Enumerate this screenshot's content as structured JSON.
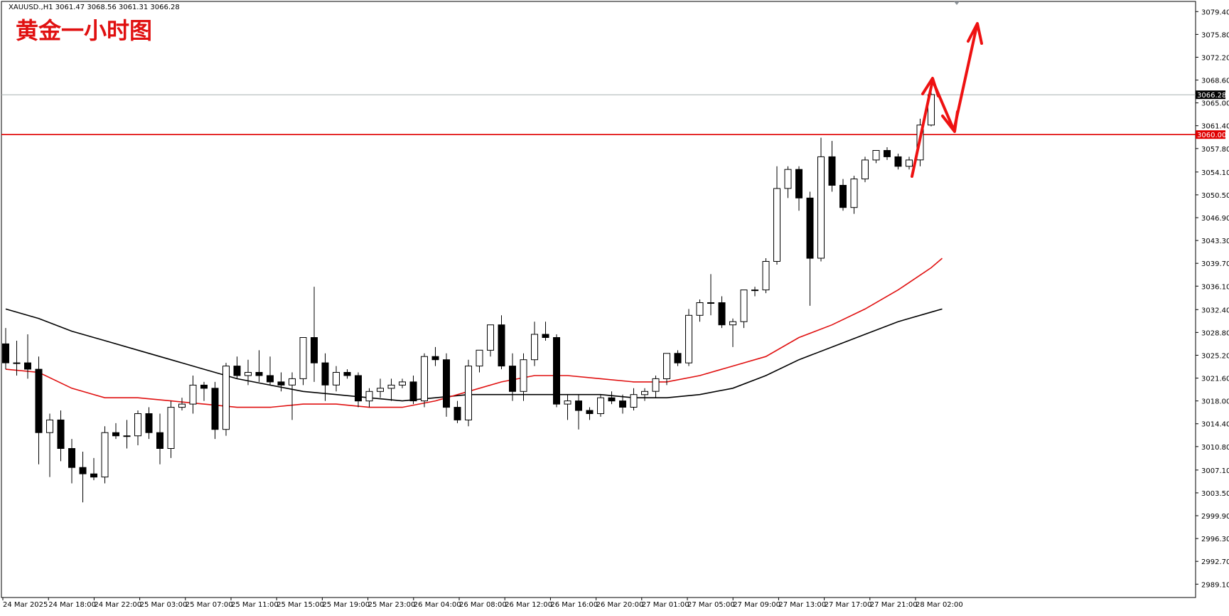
{
  "header": {
    "text": "XAUUSD.,H1  3061.47 3068.56 3061.31 3066.28"
  },
  "title": "黄金一小时图",
  "price_tags": {
    "current": "3066.28",
    "level": "3060.00"
  },
  "colors": {
    "background": "#ffffff",
    "frame": "#000000",
    "bull_body": "#ffffff",
    "bear_body": "#000000",
    "ma_fast": "#e01010",
    "ma_slow": "#000000",
    "level_line": "#e00000",
    "current_line": "#a8b0b0",
    "arrow": "#ee1111",
    "title": "#e01010"
  },
  "chart_data": {
    "type": "candlestick",
    "symbol": "XAUUSD.",
    "timeframe": "H1",
    "ylim": [
      2987.0,
      3081.0
    ],
    "y_ticks": [
      "3079.40",
      "3075.80",
      "3072.20",
      "3068.60",
      "3065.00",
      "3061.40",
      "3057.80",
      "3054.10",
      "3050.50",
      "3046.90",
      "3043.30",
      "3039.70",
      "3036.10",
      "3032.40",
      "3028.80",
      "3025.20",
      "3021.60",
      "3018.00",
      "3014.40",
      "3010.80",
      "3007.10",
      "3003.50",
      "2999.90",
      "2996.30",
      "2992.70",
      "2989.10"
    ],
    "x_labels": [
      "24 Mar 2025",
      "24 Mar 18:00",
      "24 Mar 22:00",
      "25 Mar 03:00",
      "25 Mar 07:00",
      "25 Mar 11:00",
      "25 Mar 15:00",
      "25 Mar 19:00",
      "25 Mar 23:00",
      "26 Mar 04:00",
      "26 Mar 08:00",
      "26 Mar 12:00",
      "26 Mar 16:00",
      "26 Mar 20:00",
      "27 Mar 01:00",
      "27 Mar 05:00",
      "27 Mar 09:00",
      "27 Mar 13:00",
      "27 Mar 17:00",
      "27 Mar 21:00",
      "28 Mar 02:00"
    ],
    "candles": [
      [
        3027.0,
        3029.5,
        3023.0,
        3024.0
      ],
      [
        3024.0,
        3027.5,
        3022.0,
        3024.0
      ],
      [
        3024.0,
        3028.5,
        3021.5,
        3023.0
      ],
      [
        3023.0,
        3025.0,
        3008.0,
        3013.0
      ],
      [
        3013.0,
        3016.0,
        3006.0,
        3015.0
      ],
      [
        3015.0,
        3016.5,
        3008.5,
        3010.5
      ],
      [
        3010.5,
        3012.0,
        3005.0,
        3007.5
      ],
      [
        3007.5,
        3010.0,
        3002.0,
        3006.5
      ],
      [
        3006.5,
        3009.0,
        3005.5,
        3006.0
      ],
      [
        3006.0,
        3014.0,
        3005.0,
        3013.0
      ],
      [
        3013.0,
        3014.5,
        3012.0,
        3012.5
      ],
      [
        3012.5,
        3015.0,
        3010.5,
        3012.5
      ],
      [
        3012.5,
        3016.5,
        3011.0,
        3016.0
      ],
      [
        3016.0,
        3017.0,
        3012.0,
        3013.0
      ],
      [
        3013.0,
        3016.0,
        3008.0,
        3010.5
      ],
      [
        3010.5,
        3018.0,
        3009.0,
        3017.0
      ],
      [
        3017.0,
        3018.5,
        3016.5,
        3017.5
      ],
      [
        3017.5,
        3022.0,
        3016.0,
        3020.5
      ],
      [
        3020.5,
        3021.0,
        3018.0,
        3020.0
      ],
      [
        3020.0,
        3021.0,
        3012.0,
        3013.5
      ],
      [
        3013.5,
        3024.0,
        3012.5,
        3023.5
      ],
      [
        3023.5,
        3025.0,
        3021.5,
        3022.0
      ],
      [
        3022.0,
        3024.5,
        3020.5,
        3022.5
      ],
      [
        3022.5,
        3026.0,
        3021.0,
        3022.0
      ],
      [
        3022.0,
        3025.0,
        3020.5,
        3021.0
      ],
      [
        3021.0,
        3022.5,
        3019.5,
        3020.5
      ],
      [
        3020.5,
        3022.5,
        3015.0,
        3021.5
      ],
      [
        3021.5,
        3028.0,
        3020.5,
        3028.0
      ],
      [
        3028.0,
        3036.0,
        3021.0,
        3024.0
      ],
      [
        3024.0,
        3025.5,
        3018.0,
        3020.5
      ],
      [
        3020.5,
        3023.5,
        3019.5,
        3022.5
      ],
      [
        3022.5,
        3023.0,
        3021.5,
        3022.0
      ],
      [
        3022.0,
        3022.5,
        3017.0,
        3018.0
      ],
      [
        3018.0,
        3020.0,
        3017.0,
        3019.5
      ],
      [
        3019.5,
        3021.5,
        3018.5,
        3020.0
      ],
      [
        3020.0,
        3021.5,
        3018.0,
        3020.5
      ],
      [
        3020.5,
        3021.5,
        3020.0,
        3021.0
      ],
      [
        3021.0,
        3022.0,
        3017.5,
        3018.0
      ],
      [
        3018.0,
        3025.5,
        3017.0,
        3025.0
      ],
      [
        3025.0,
        3026.5,
        3023.5,
        3024.5
      ],
      [
        3024.5,
        3025.5,
        3015.5,
        3017.0
      ],
      [
        3017.0,
        3018.0,
        3014.5,
        3015.0
      ],
      [
        3015.0,
        3024.5,
        3014.0,
        3023.5
      ],
      [
        3023.5,
        3026.0,
        3022.5,
        3026.0
      ],
      [
        3026.0,
        3030.0,
        3025.0,
        3030.0
      ],
      [
        3030.0,
        3031.5,
        3023.0,
        3023.5
      ],
      [
        3023.5,
        3025.5,
        3018.0,
        3019.5
      ],
      [
        3019.5,
        3025.5,
        3018.0,
        3024.5
      ],
      [
        3024.5,
        3030.5,
        3023.5,
        3028.5
      ],
      [
        3028.5,
        3030.5,
        3027.5,
        3028.0
      ],
      [
        3028.0,
        3028.5,
        3017.0,
        3017.5
      ],
      [
        3017.5,
        3019.0,
        3015.0,
        3018.0
      ],
      [
        3018.0,
        3019.0,
        3013.5,
        3016.5
      ],
      [
        3016.5,
        3017.0,
        3015.0,
        3016.0
      ],
      [
        3016.0,
        3019.0,
        3015.5,
        3018.5
      ],
      [
        3018.5,
        3019.5,
        3017.5,
        3018.0
      ],
      [
        3018.0,
        3019.0,
        3016.0,
        3017.0
      ],
      [
        3017.0,
        3020.0,
        3016.5,
        3019.0
      ],
      [
        3019.0,
        3020.0,
        3018.0,
        3019.5
      ],
      [
        3019.5,
        3022.0,
        3018.5,
        3021.5
      ],
      [
        3021.5,
        3025.5,
        3020.5,
        3025.5
      ],
      [
        3025.5,
        3026.0,
        3023.5,
        3024.0
      ],
      [
        3024.0,
        3032.5,
        3023.5,
        3031.5
      ],
      [
        3031.5,
        3034.0,
        3030.5,
        3033.5
      ],
      [
        3033.5,
        3038.0,
        3031.5,
        3033.5
      ],
      [
        3033.5,
        3034.5,
        3029.5,
        3030.0
      ],
      [
        3030.0,
        3031.0,
        3026.5,
        3030.5
      ],
      [
        3030.5,
        3035.5,
        3029.5,
        3035.5
      ],
      [
        3035.5,
        3036.0,
        3034.5,
        3035.5
      ],
      [
        3035.5,
        3040.5,
        3035.0,
        3040.0
      ],
      [
        3040.0,
        3055.0,
        3039.5,
        3051.5
      ],
      [
        3051.5,
        3055.0,
        3050.0,
        3054.5
      ],
      [
        3054.5,
        3055.0,
        3048.0,
        3050.0
      ],
      [
        3050.0,
        3051.0,
        3033.0,
        3040.5
      ],
      [
        3040.5,
        3059.5,
        3040.0,
        3056.5
      ],
      [
        3056.5,
        3059.0,
        3051.0,
        3052.0
      ],
      [
        3052.0,
        3053.0,
        3048.0,
        3048.5
      ],
      [
        3048.5,
        3053.5,
        3047.5,
        3053.0
      ],
      [
        3053.0,
        3056.5,
        3052.5,
        3056.0
      ],
      [
        3056.0,
        3057.5,
        3055.5,
        3057.5
      ],
      [
        3057.5,
        3058.0,
        3056.0,
        3056.5
      ],
      [
        3056.5,
        3057.0,
        3054.5,
        3055.0
      ],
      [
        3055.0,
        3056.5,
        3054.5,
        3056.0
      ],
      [
        3056.0,
        3062.5,
        3055.0,
        3061.5
      ],
      [
        3061.5,
        3068.5,
        3061.3,
        3066.3
      ]
    ],
    "ma_fast_points": [
      [
        0,
        3023.0
      ],
      [
        3,
        3022.5
      ],
      [
        6,
        3020.0
      ],
      [
        9,
        3018.5
      ],
      [
        12,
        3018.5
      ],
      [
        15,
        3018.0
      ],
      [
        18,
        3017.5
      ],
      [
        21,
        3017.0
      ],
      [
        24,
        3017.0
      ],
      [
        27,
        3017.5
      ],
      [
        30,
        3017.5
      ],
      [
        33,
        3017.0
      ],
      [
        36,
        3017.0
      ],
      [
        39,
        3018.0
      ],
      [
        42,
        3019.5
      ],
      [
        45,
        3021.0
      ],
      [
        48,
        3022.0
      ],
      [
        51,
        3022.0
      ],
      [
        54,
        3021.5
      ],
      [
        57,
        3021.0
      ],
      [
        60,
        3021.0
      ],
      [
        63,
        3022.0
      ],
      [
        66,
        3023.5
      ],
      [
        69,
        3025.0
      ],
      [
        72,
        3028.0
      ],
      [
        75,
        3030.0
      ],
      [
        78,
        3032.5
      ],
      [
        81,
        3035.5
      ],
      [
        84,
        3039.0
      ],
      [
        85,
        3040.5
      ]
    ],
    "ma_slow_points": [
      [
        0,
        3032.5
      ],
      [
        3,
        3031.0
      ],
      [
        6,
        3029.0
      ],
      [
        9,
        3027.5
      ],
      [
        12,
        3026.0
      ],
      [
        15,
        3024.5
      ],
      [
        18,
        3023.0
      ],
      [
        21,
        3021.5
      ],
      [
        24,
        3020.5
      ],
      [
        27,
        3019.5
      ],
      [
        30,
        3019.0
      ],
      [
        33,
        3018.5
      ],
      [
        36,
        3018.0
      ],
      [
        39,
        3018.5
      ],
      [
        42,
        3019.0
      ],
      [
        45,
        3019.0
      ],
      [
        48,
        3019.0
      ],
      [
        51,
        3019.0
      ],
      [
        54,
        3019.0
      ],
      [
        57,
        3018.5
      ],
      [
        60,
        3018.5
      ],
      [
        63,
        3019.0
      ],
      [
        66,
        3020.0
      ],
      [
        69,
        3022.0
      ],
      [
        72,
        3024.5
      ],
      [
        75,
        3026.5
      ],
      [
        78,
        3028.5
      ],
      [
        81,
        3030.5
      ],
      [
        84,
        3032.0
      ],
      [
        85,
        3032.5
      ]
    ],
    "horizontal_lines": [
      3060.0,
      3066.28
    ]
  }
}
